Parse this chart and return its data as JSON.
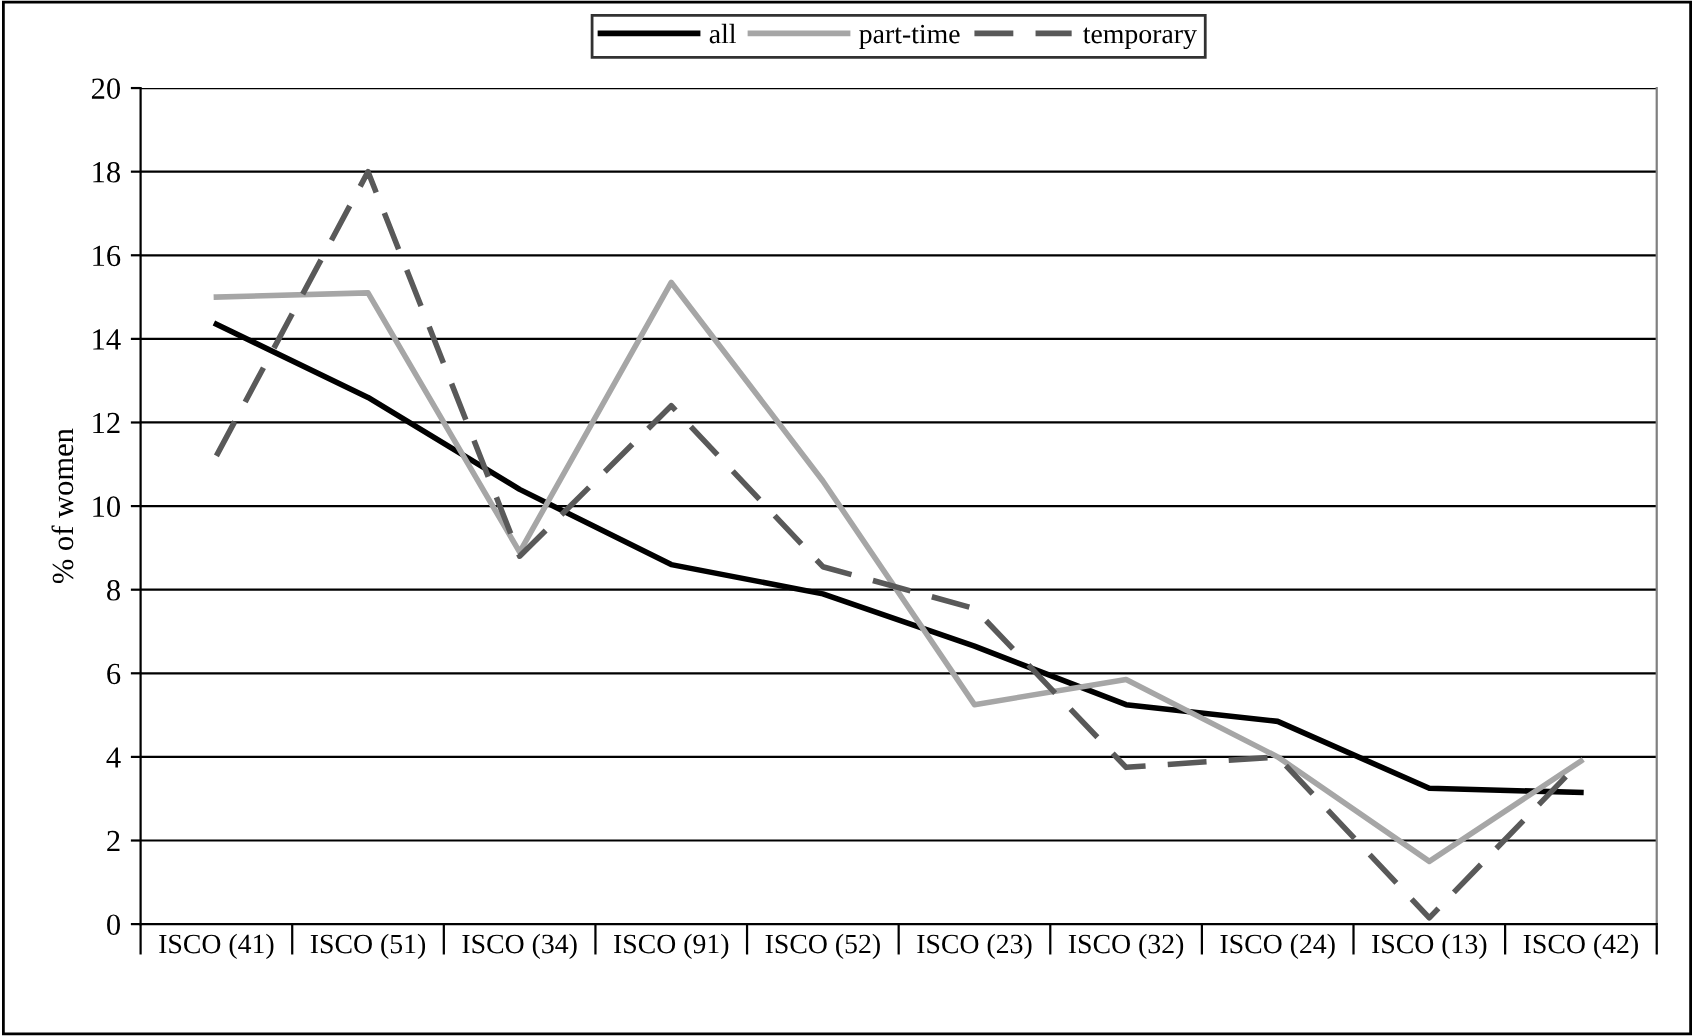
{
  "chart_data": {
    "type": "line",
    "ylabel": "% of women",
    "categories": [
      "ISCO (41)",
      "ISCO (51)",
      "ISCO (34)",
      "ISCO (91)",
      "ISCO (52)",
      "ISCO (23)",
      "ISCO (32)",
      "ISCO (24)",
      "ISCO (13)",
      "ISCO (42)"
    ],
    "series": [
      {
        "name": "all",
        "color": "#000000",
        "line_style": "solid",
        "values": [
          14.35,
          12.6,
          10.4,
          8.6,
          7.9,
          6.65,
          5.25,
          4.85,
          3.25,
          3.15
        ]
      },
      {
        "name": "part-time",
        "color": "#a6a6a6",
        "line_style": "solid",
        "values": [
          15.0,
          15.1,
          8.9,
          15.35,
          10.6,
          5.25,
          5.85,
          4.0,
          1.5,
          3.9
        ]
      },
      {
        "name": "temporary",
        "color": "#595959",
        "line_style": "dashed",
        "values": [
          11.2,
          18.0,
          8.8,
          12.4,
          8.55,
          7.55,
          3.75,
          4.0,
          0.15,
          3.9
        ]
      }
    ],
    "ylim": [
      0,
      20
    ],
    "yticks": [
      0,
      2,
      4,
      6,
      8,
      10,
      12,
      14,
      16,
      18,
      20
    ],
    "grid": "y",
    "legend": "top"
  }
}
